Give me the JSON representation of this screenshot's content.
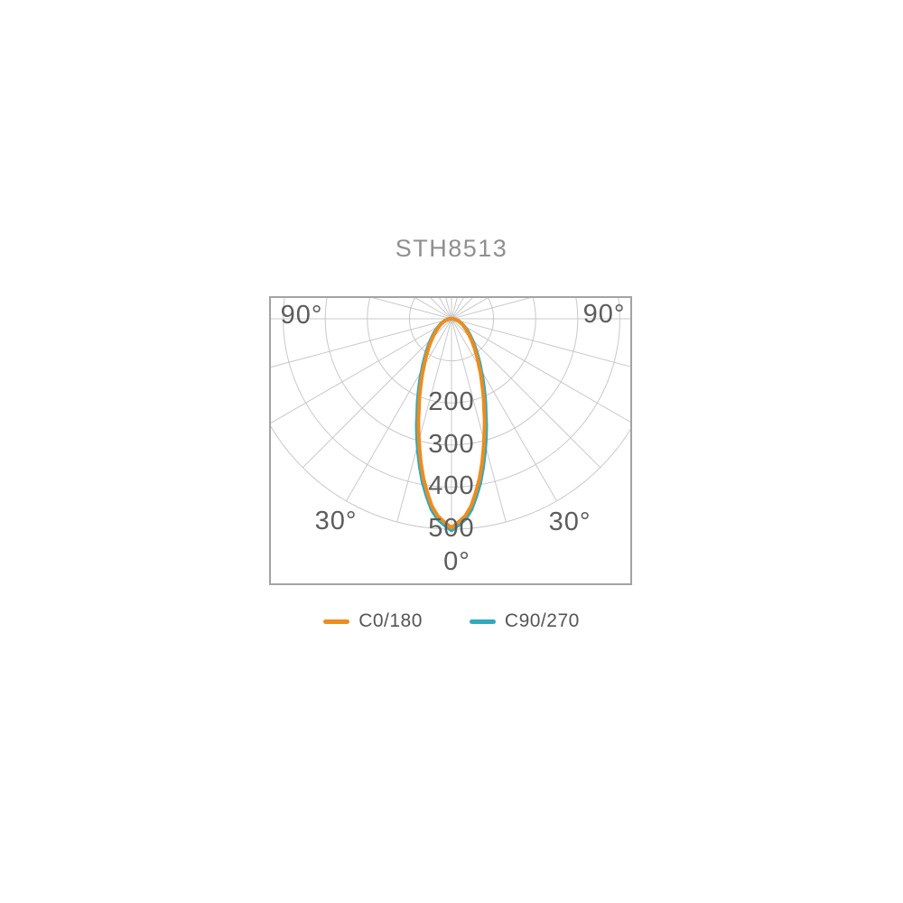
{
  "title": "STH8513",
  "chart_data": {
    "type": "polar_photometric",
    "title": "STH8513",
    "max_ring": 500,
    "ring_step": 100,
    "ring_values": [
      100,
      200,
      300,
      400,
      500
    ],
    "ring_labels": [
      "200",
      "300",
      "400",
      "500"
    ],
    "grid_angle_step_deg": 15,
    "grid_color": "#c9c9c9",
    "border_color": "#a3a3a3",
    "label_color": "#5c5c5c",
    "angle_labels": [
      {
        "text": "90°",
        "position": "upper-left"
      },
      {
        "text": "90°",
        "position": "upper-right"
      },
      {
        "text": "30°",
        "position": "lower-left"
      },
      {
        "text": "30°",
        "position": "lower-right"
      },
      {
        "text": "0°",
        "position": "bottom-center"
      }
    ],
    "series": [
      {
        "name": "C0/180",
        "color": "#ed8c1e",
        "symmetric": true,
        "angles_deg": [
          0,
          5,
          10,
          15,
          20,
          25,
          30,
          35,
          40,
          45,
          50,
          55,
          60,
          65,
          70,
          75,
          80,
          85,
          90
        ],
        "intensities": [
          497,
          463,
          384,
          298,
          226,
          171,
          131,
          102,
          80,
          63,
          50,
          40,
          32,
          25,
          19,
          14,
          9,
          4,
          0
        ]
      },
      {
        "name": "C90/270",
        "color": "#30a9bd",
        "symmetric": true,
        "angles_deg": [
          0,
          5,
          10,
          15,
          20,
          25,
          30,
          35,
          40,
          45,
          50,
          55,
          60,
          65,
          70,
          75,
          80,
          85,
          90
        ],
        "intensities": [
          503,
          471,
          395,
          311,
          238,
          182,
          140,
          109,
          86,
          68,
          55,
          43,
          34,
          27,
          20,
          15,
          10,
          5,
          0
        ]
      }
    ],
    "legend": [
      {
        "label": "C0/180",
        "color": "#ed8c1e"
      },
      {
        "label": "C90/270",
        "color": "#30a9bd"
      }
    ]
  }
}
